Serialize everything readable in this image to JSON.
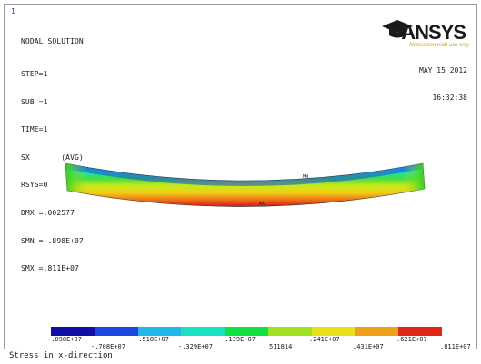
{
  "window_number": "1",
  "info": {
    "title": "NODAL SOLUTION",
    "lines": [
      "STEP=1",
      "SUB =1",
      "TIME=1",
      "SX       (AVG)",
      "RSYS=0",
      "DMX =.002577",
      "SMN =-.898E+07",
      "SMX =.811E+07"
    ]
  },
  "logo": {
    "name": "ANSYS",
    "tagline": "Noncommercial use only",
    "icon": "graduation-cap-icon"
  },
  "datetime": {
    "date": "MAY 15 2012",
    "time": "16:32:38"
  },
  "markers": {
    "mn": "MN",
    "mx": "MX"
  },
  "legend": {
    "colors": [
      "#1010a8",
      "#1a48e0",
      "#20b8e8",
      "#18e0c0",
      "#10e040",
      "#a0e020",
      "#e8e018",
      "#f0a018",
      "#e02818"
    ],
    "ticks_upper": [
      "-.898E+07",
      "-.518E+07",
      "-.139E+07",
      ".241E+07",
      ".621E+07"
    ],
    "ticks_lower": [
      "-.708E+07",
      "-.329E+07",
      "511814",
      ".431E+07",
      ".811E+07"
    ]
  },
  "caption": "Stress in x-direction"
}
